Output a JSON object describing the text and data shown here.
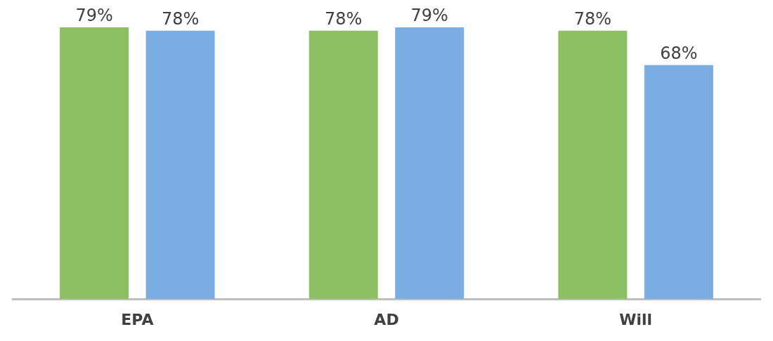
{
  "chart_data": {
    "type": "bar",
    "categories": [
      "EPA",
      "AD",
      "Will"
    ],
    "series": [
      {
        "color": "#8cc063",
        "values": [
          79,
          78,
          78
        ],
        "value_labels": [
          "79%",
          "78%",
          "78%"
        ]
      },
      {
        "color": "#7aaee2",
        "values": [
          78,
          79,
          68
        ],
        "value_labels": [
          "78%",
          "79%",
          "68%"
        ]
      }
    ],
    "tick_labels": "x",
    "grid": false
  }
}
